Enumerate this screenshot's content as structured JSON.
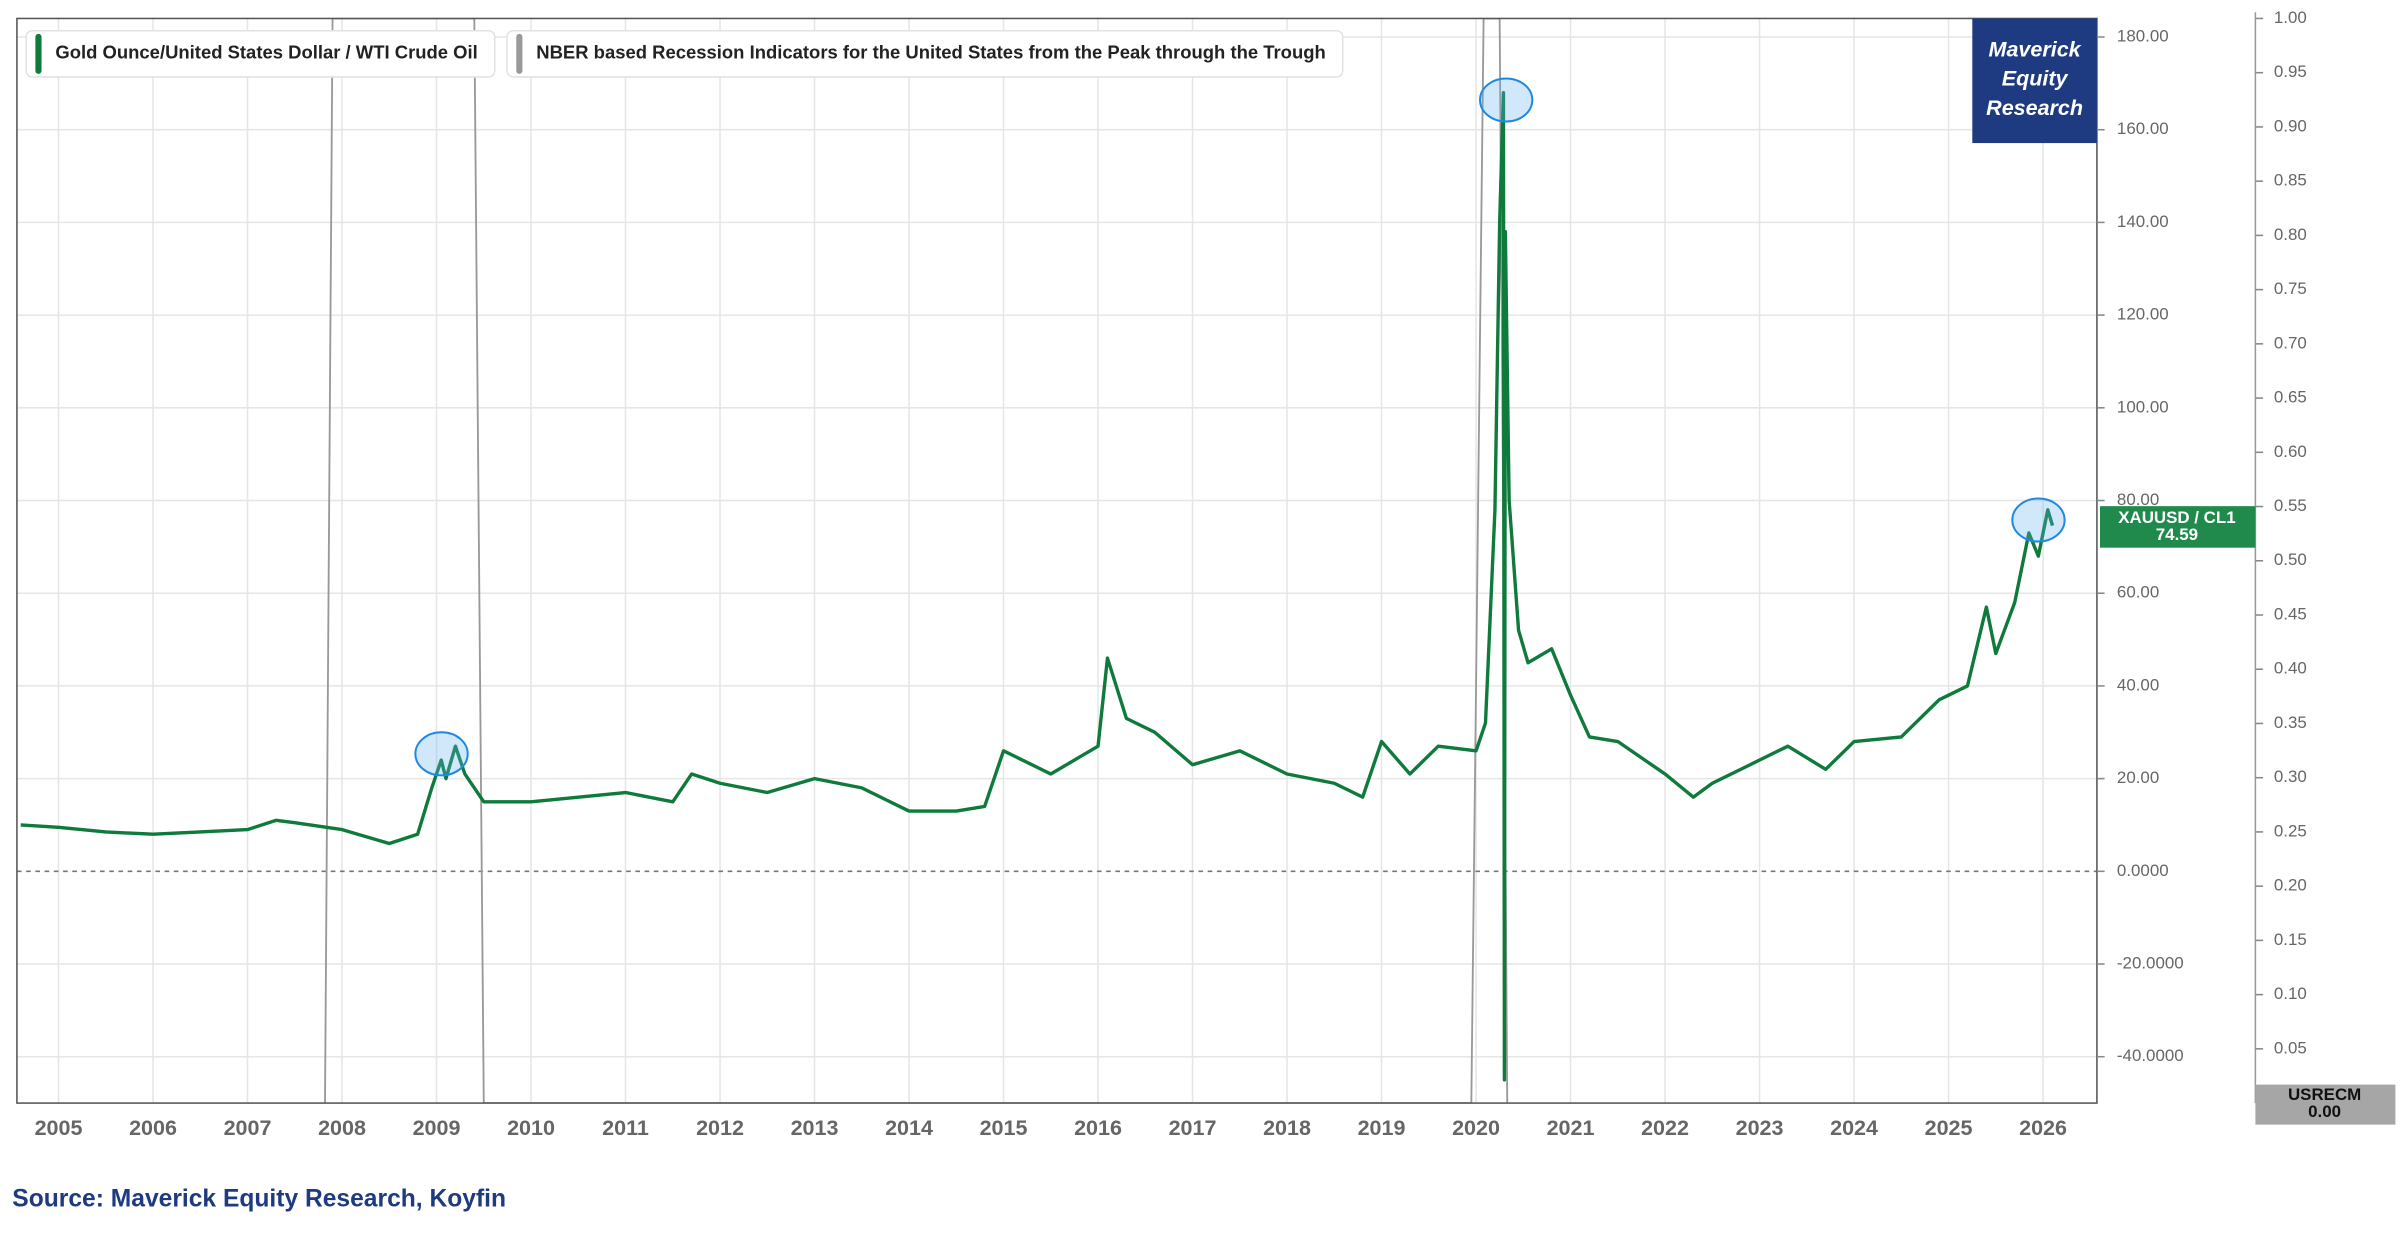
{
  "chart_data": {
    "type": "line",
    "logo": [
      "Maverick",
      "Equity",
      "Research"
    ],
    "source": "Source: Maverick Equity Research, Koyfin",
    "badges": [
      {
        "label": "XAUUSD / CL1",
        "value": "74.59"
      },
      {
        "label": "USRECM",
        "value": "0.00"
      }
    ],
    "xlim": [
      2004.56,
      2026.57
    ],
    "xticks": [
      2005,
      2006,
      2007,
      2008,
      2009,
      2010,
      2011,
      2012,
      2013,
      2014,
      2015,
      2016,
      2017,
      2018,
      2019,
      2020,
      2021,
      2022,
      2023,
      2024,
      2025,
      2026
    ],
    "ylim": [
      -50,
      184
    ],
    "yticks": [
      {
        "value": 180,
        "label": "180.00"
      },
      {
        "value": 160,
        "label": "160.00"
      },
      {
        "value": 140,
        "label": "140.00"
      },
      {
        "value": 120,
        "label": "120.00"
      },
      {
        "value": 100,
        "label": "100.00"
      },
      {
        "value": 80,
        "label": "80.00"
      },
      {
        "value": 60,
        "label": "60.00"
      },
      {
        "value": 40,
        "label": "40.00"
      },
      {
        "value": 20,
        "label": "20.00"
      },
      {
        "value": 0,
        "label": "0.0000"
      },
      {
        "value": -20,
        "label": "-20.0000"
      },
      {
        "value": -40,
        "label": "-40.0000"
      }
    ],
    "y2lim": [
      0,
      1.0
    ],
    "y2ticks": [
      {
        "value": 1.0,
        "label": "1.00"
      },
      {
        "value": 0.95,
        "label": "0.95"
      },
      {
        "value": 0.9,
        "label": "0.90"
      },
      {
        "value": 0.85,
        "label": "0.85"
      },
      {
        "value": 0.8,
        "label": "0.80"
      },
      {
        "value": 0.75,
        "label": "0.75"
      },
      {
        "value": 0.7,
        "label": "0.70"
      },
      {
        "value": 0.65,
        "label": "0.65"
      },
      {
        "value": 0.6,
        "label": "0.60"
      },
      {
        "value": 0.55,
        "label": "0.55"
      },
      {
        "value": 0.5,
        "label": "0.50"
      },
      {
        "value": 0.45,
        "label": "0.45"
      },
      {
        "value": 0.4,
        "label": "0.40"
      },
      {
        "value": 0.35,
        "label": "0.35"
      },
      {
        "value": 0.3,
        "label": "0.30"
      },
      {
        "value": 0.25,
        "label": "0.25"
      },
      {
        "value": 0.2,
        "label": "0.20"
      },
      {
        "value": 0.15,
        "label": "0.15"
      },
      {
        "value": 0.1,
        "label": "0.10"
      },
      {
        "value": 0.05,
        "label": "0.05"
      }
    ],
    "grid": true,
    "series": [
      {
        "name": "Gold Ounce/United States Dollar / WTI Crude Oil",
        "color": "#0e7a3c",
        "x": [
          2004.6,
          2005,
          2005.5,
          2006,
          2006.5,
          2007,
          2007.3,
          2007.5,
          2008,
          2008.5,
          2008.8,
          2008.95,
          2009.05,
          2009.1,
          2009.2,
          2009.3,
          2009.5,
          2010,
          2010.5,
          2011,
          2011.5,
          2011.7,
          2012,
          2012.5,
          2013,
          2013.5,
          2014,
          2014.5,
          2014.8,
          2015,
          2015.5,
          2016,
          2016.1,
          2016.3,
          2016.6,
          2017,
          2017.5,
          2018,
          2018.5,
          2018.8,
          2019,
          2019.3,
          2019.6,
          2020,
          2020.1,
          2020.2,
          2020.25,
          2020.29,
          2020.3,
          2020.31,
          2020.35,
          2020.45,
          2020.55,
          2020.8,
          2021,
          2021.2,
          2021.5,
          2022,
          2022.3,
          2022.5,
          2022.9,
          2023.3,
          2023.7,
          2024,
          2024.5,
          2024.9,
          2025.2,
          2025.4,
          2025.5,
          2025.7,
          2025.85,
          2025.95,
          2026.05,
          2026.1
        ],
        "values": [
          10,
          9.5,
          8.5,
          8,
          8.5,
          9,
          11,
          10.5,
          9,
          6,
          8,
          18,
          24,
          20,
          27,
          21,
          15,
          15,
          16,
          17,
          15,
          21,
          19,
          17,
          20,
          18,
          13,
          13,
          14,
          26,
          21,
          27,
          46,
          33,
          30,
          23,
          26,
          21,
          19,
          16,
          28,
          21,
          27,
          26,
          32,
          78,
          140,
          168,
          -45,
          138,
          80,
          52,
          45,
          48,
          38,
          29,
          28,
          21,
          16,
          19,
          23,
          27,
          22,
          28,
          29,
          37,
          40,
          57,
          47,
          58,
          73,
          68,
          78,
          74.59
        ]
      },
      {
        "name": "NBER based Recession Indicators for the United States from the Peak through the Trough",
        "color": "#999999",
        "axis": "y2",
        "x": [
          2007.82,
          2007.9,
          2009.4,
          2009.5,
          2019.95,
          2020.08,
          2020.25,
          2020.33
        ],
        "values": [
          0,
          1,
          1,
          0,
          0,
          1,
          1,
          0
        ]
      }
    ]
  }
}
